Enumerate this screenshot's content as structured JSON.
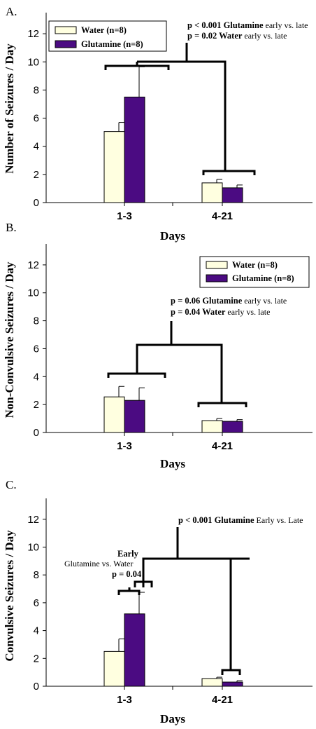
{
  "colors": {
    "water": "#ffffe0",
    "glutamine": "#4b0b82"
  },
  "chart_data": [
    {
      "type": "bar",
      "panel_label": "A.",
      "categories": [
        "1-3",
        "4-21"
      ],
      "series": [
        {
          "name": "Water (n=8)",
          "values": [
            5.05,
            1.4
          ],
          "errors": [
            0.65,
            0.25
          ]
        },
        {
          "name": "Glutamine (n=8)",
          "values": [
            7.5,
            1.05
          ],
          "errors": [
            2.15,
            0.2
          ]
        }
      ],
      "xlabel": "Days",
      "ylabel": "Number of Seizures / Day",
      "ylim": [
        0,
        13.5
      ],
      "yticks": [
        "0",
        "2",
        "4",
        "6",
        "8",
        "10",
        "12"
      ],
      "legend": "top-left",
      "annotations": [
        [
          {
            "b": "p < 0.001 Glutamine"
          },
          {
            "n": " early vs. late"
          }
        ],
        [
          {
            "b": "p = 0.02 Water"
          },
          {
            "n": " early vs. late"
          }
        ]
      ]
    },
    {
      "type": "bar",
      "panel_label": "B.",
      "categories": [
        "1-3",
        "4-21"
      ],
      "series": [
        {
          "name": "Water (n=8)",
          "values": [
            2.55,
            0.85
          ],
          "errors": [
            0.75,
            0.15
          ]
        },
        {
          "name": "Glutamine (n=8)",
          "values": [
            2.3,
            0.8
          ],
          "errors": [
            0.9,
            0.12
          ]
        }
      ],
      "xlabel": "Days",
      "ylabel": "Non-Convulsive Seizures / Day",
      "ylim": [
        0,
        13.5
      ],
      "yticks": [
        "0",
        "2",
        "4",
        "6",
        "8",
        "10",
        "12"
      ],
      "legend": "top-right",
      "annotations": [
        [
          {
            "b": "p = 0.06  Glutamine"
          },
          {
            "n": " early vs. late"
          }
        ],
        [
          {
            "b": "p = 0.04  Water"
          },
          {
            "n": " early vs. late"
          }
        ]
      ]
    },
    {
      "type": "bar",
      "panel_label": "C.",
      "categories": [
        "1-3",
        "4-21"
      ],
      "series": [
        {
          "name": "Water (n=8)",
          "values": [
            2.5,
            0.55
          ],
          "errors": [
            0.9,
            0.1
          ]
        },
        {
          "name": "Glutamine (n=8)",
          "values": [
            5.2,
            0.3
          ],
          "errors": [
            1.55,
            0.1
          ]
        }
      ],
      "xlabel": "Days",
      "ylabel": "Convulsive Seizures / Day",
      "ylim": [
        0,
        13.5
      ],
      "yticks": [
        "0",
        "2",
        "4",
        "6",
        "8",
        "10",
        "12"
      ],
      "annotations": [
        [
          {
            "b": "p < 0.001  Glutamine"
          },
          {
            "n": " Early vs. Late"
          }
        ],
        [
          {
            "b": "Early"
          }
        ],
        [
          {
            "n": "Glutamine vs. Water"
          }
        ],
        [
          {
            "b": "p = 0.04"
          }
        ]
      ]
    }
  ]
}
